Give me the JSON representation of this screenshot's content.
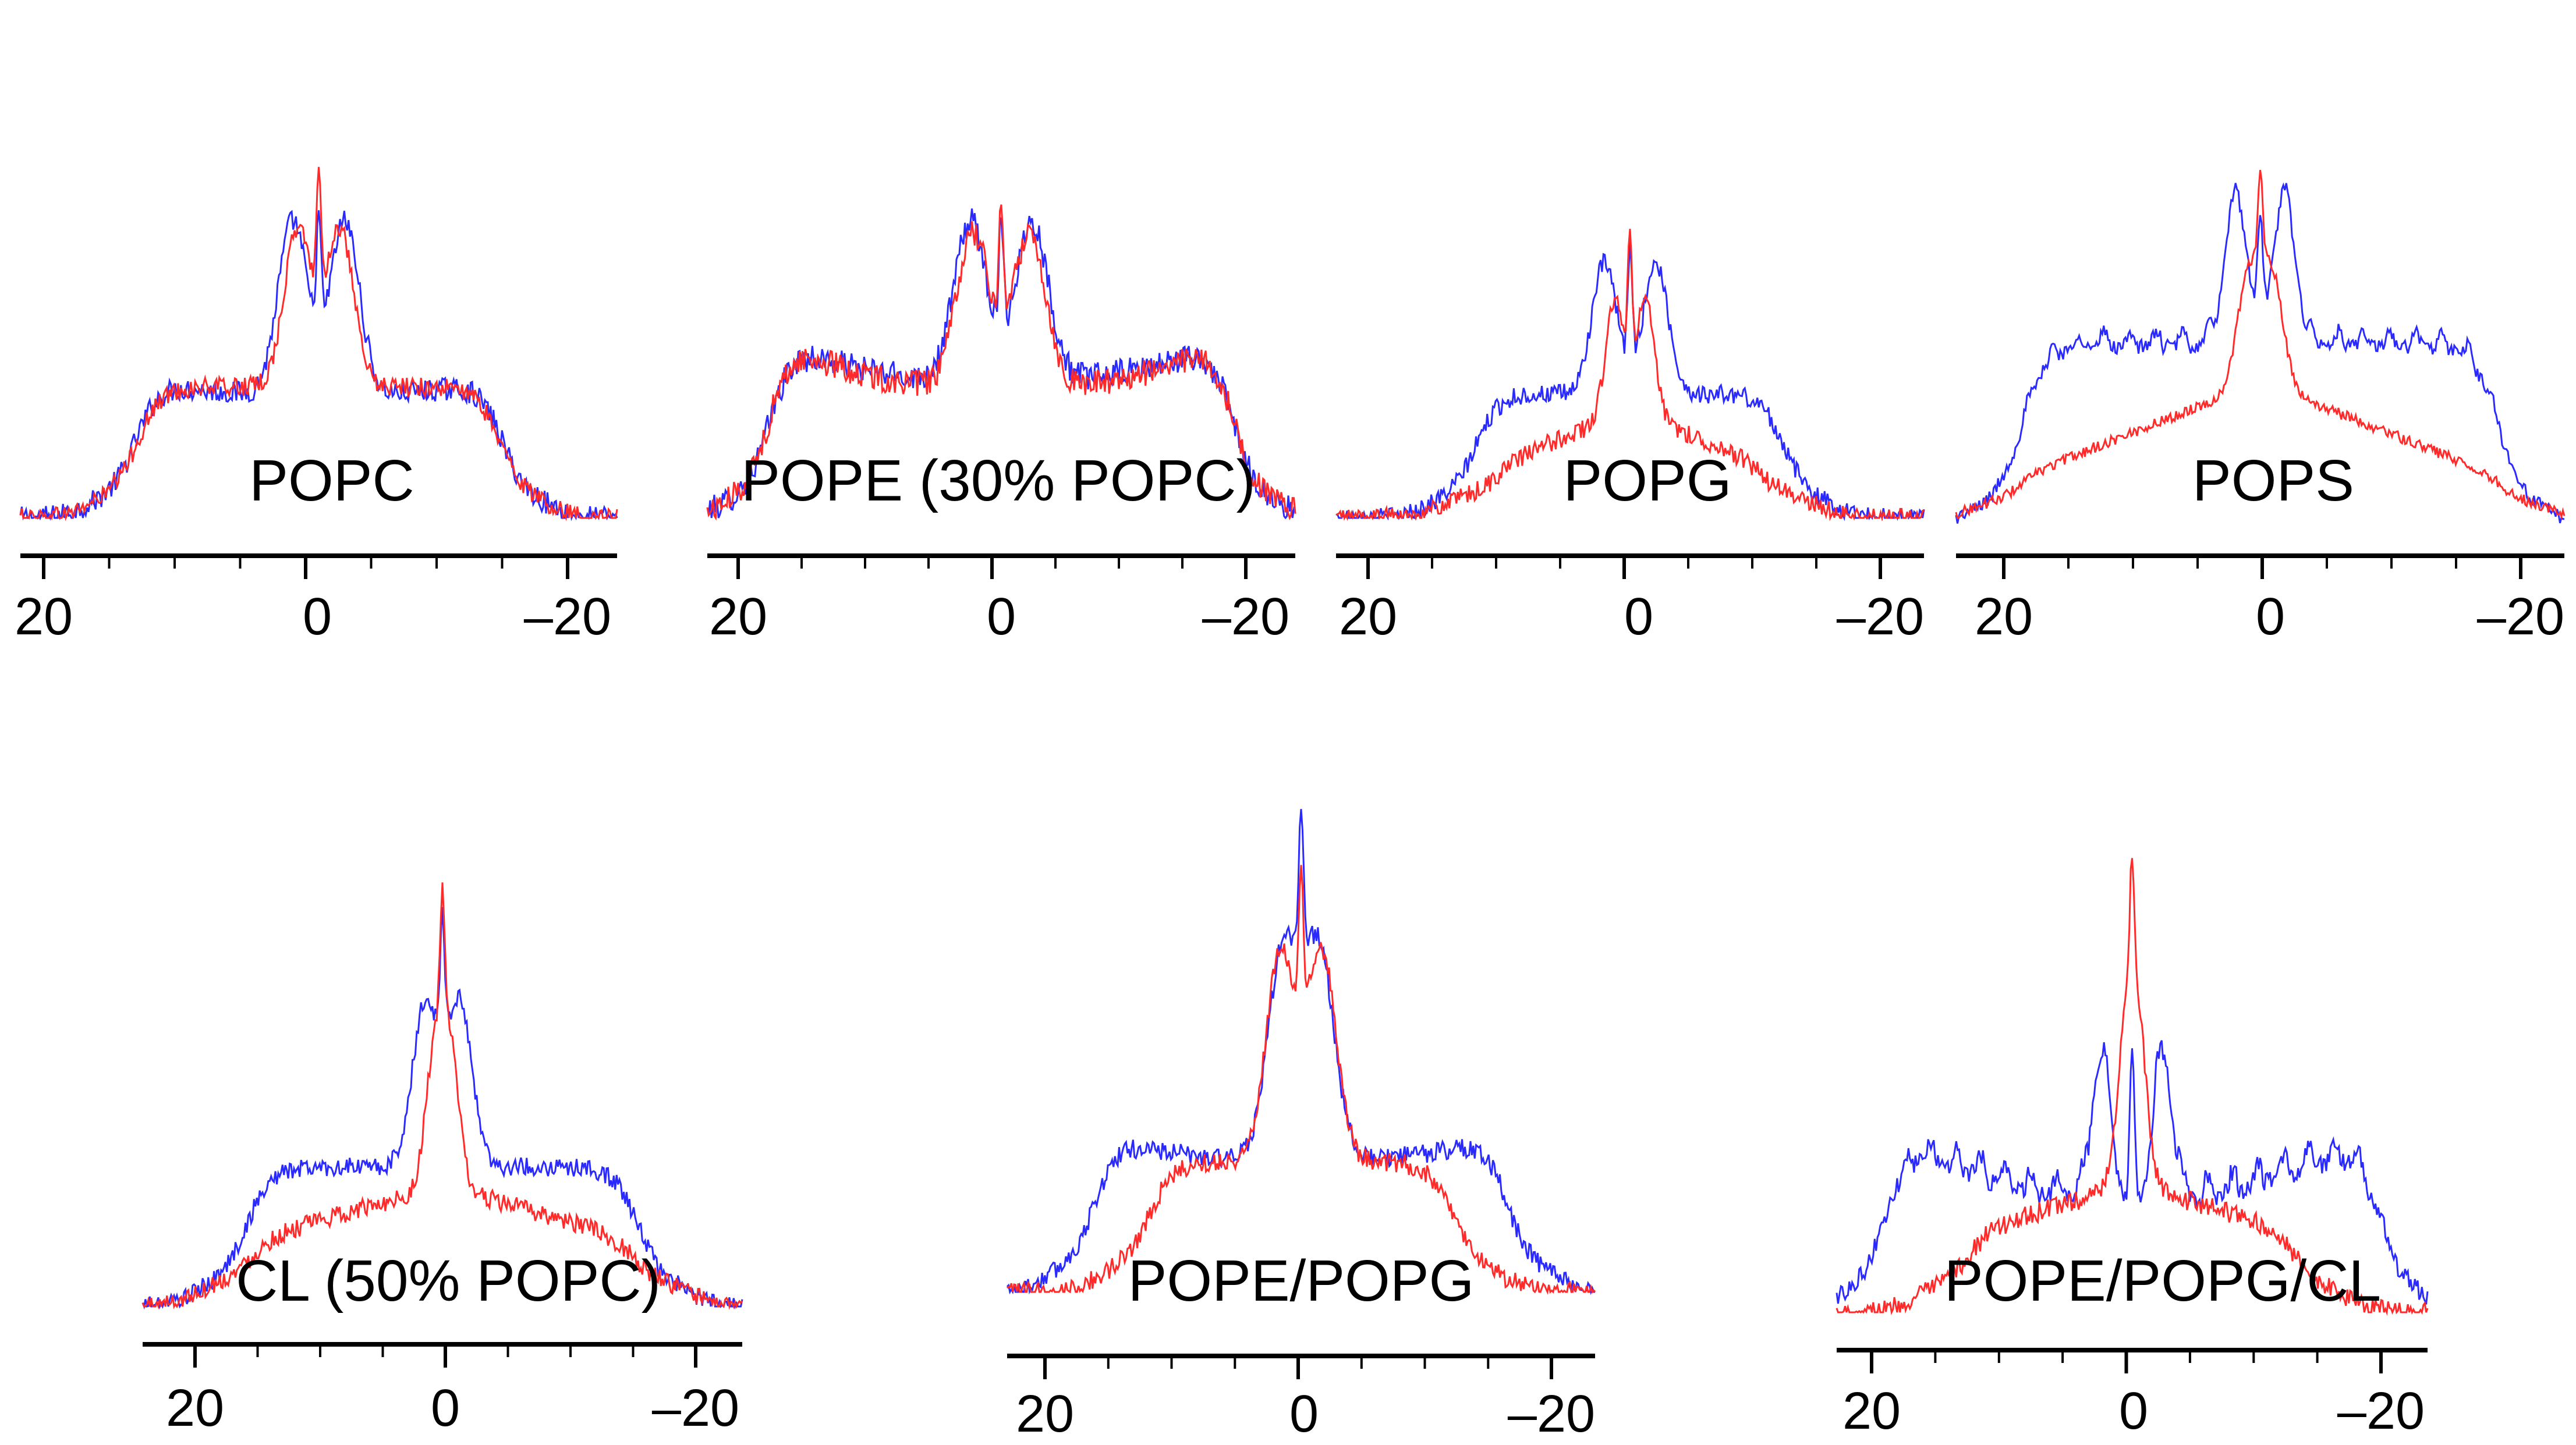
{
  "colors": {
    "series_blue": "#2a2aff",
    "series_red": "#ff2a2a",
    "axis": "#000000"
  },
  "chart_data": [
    {
      "type": "line",
      "title": "POPC",
      "xlim": [
        23,
        -23
      ],
      "ylim": [
        0,
        1
      ],
      "ticks": [
        20,
        0,
        -20
      ],
      "tick_labels": [
        "20",
        "0",
        "–20"
      ],
      "series": [
        {
          "name": "blue",
          "shape": "plateau",
          "edge": 14,
          "outer": 0.37,
          "inner": 0.32,
          "base": 0.0,
          "peak": 0.9,
          "peakw": 1.6,
          "noise": 0.03,
          "spike": 1.15,
          "split": 2.0
        },
        {
          "name": "red",
          "shape": "plateau",
          "edge": 14,
          "outer": 0.34,
          "inner": 0.34,
          "base": 0.0,
          "peak": 0.82,
          "peakw": 1.5,
          "noise": 0.025,
          "spike": 1.2,
          "split": 1.6
        }
      ]
    },
    {
      "type": "line",
      "title": "POPE (30% POPC)",
      "xlim": [
        23,
        -23
      ],
      "ylim": [
        0,
        1
      ],
      "ticks": [
        20,
        0,
        -20
      ],
      "tick_labels": [
        "20",
        "0",
        "–20"
      ],
      "series": [
        {
          "name": "blue",
          "shape": "plateau",
          "edge": 18,
          "outer": 0.48,
          "inner": 0.36,
          "base": 0.0,
          "peak": 0.82,
          "peakw": 1.8,
          "noise": 0.035,
          "spike": 1.2,
          "split": 2.4
        },
        {
          "name": "red",
          "shape": "plateau",
          "edge": 18,
          "outer": 0.49,
          "inner": 0.34,
          "base": 0.0,
          "peak": 0.8,
          "peakw": 1.8,
          "noise": 0.035,
          "spike": 1.25,
          "split": 2.2
        }
      ]
    },
    {
      "type": "line",
      "title": "POPG",
      "xlim": [
        23,
        -23
      ],
      "ylim": [
        0,
        1
      ],
      "ticks": [
        20,
        0,
        -20
      ],
      "tick_labels": [
        "20",
        "0",
        "–20"
      ],
      "series": [
        {
          "name": "blue",
          "shape": "plateau",
          "edge": 12,
          "outer": 0.33,
          "inner": 0.32,
          "base": 0.0,
          "peak": 0.68,
          "peakw": 1.4,
          "noise": 0.025,
          "spike": 1.2,
          "split": 2.0
        },
        {
          "name": "red",
          "shape": "ramp",
          "edge": 11,
          "outer": 0.13,
          "inner": 0.28,
          "base": 0.0,
          "peak": 0.6,
          "peakw": 1.0,
          "noise": 0.025,
          "spike": 1.25,
          "split": 1.2
        }
      ]
    },
    {
      "type": "line",
      "title": "POPS",
      "xlim": [
        23,
        -23
      ],
      "ylim": [
        0,
        1
      ],
      "ticks": [
        20,
        0,
        -20
      ],
      "tick_labels": [
        "20",
        "0",
        "–20"
      ],
      "series": [
        {
          "name": "blue",
          "shape": "comb",
          "edge": 18,
          "outer": 0.5,
          "inner": 0.5,
          "base": 0.0,
          "peak": 0.82,
          "peakw": 1.2,
          "noise": 0.02,
          "spike": 1.0,
          "split": 1.8
        },
        {
          "name": "red",
          "shape": "ramp",
          "edge": 19,
          "outer": 0.12,
          "inner": 0.4,
          "base": 0.0,
          "peak": 0.62,
          "peakw": 1.2,
          "noise": 0.015,
          "spike": 1.0,
          "split": 0.9
        }
      ]
    },
    {
      "type": "line",
      "title": "CL (50% POPC)",
      "xlim": [
        23,
        -23
      ],
      "ylim": [
        0,
        1
      ],
      "ticks": [
        20,
        0,
        -20
      ],
      "tick_labels": [
        "20",
        "0",
        "–20"
      ],
      "series": [
        {
          "name": "blue",
          "shape": "plateau",
          "edge": 15,
          "outer": 0.3,
          "inner": 0.3,
          "base": 0.0,
          "peak": 0.7,
          "peakw": 1.4,
          "noise": 0.02,
          "spike": 1.0,
          "split": 1.3
        },
        {
          "name": "red",
          "shape": "ramp",
          "edge": 15,
          "outer": 0.14,
          "inner": 0.26,
          "base": 0.0,
          "peak": 0.55,
          "peakw": 1.0,
          "noise": 0.02,
          "spike": 1.0,
          "split": 0.6
        }
      ]
    },
    {
      "type": "line",
      "title": "POPE/POPG",
      "xlim": [
        23,
        -23
      ],
      "ylim": [
        0,
        1
      ],
      "ticks": [
        20,
        0,
        -20
      ],
      "tick_labels": [
        "20",
        "0",
        "–20"
      ],
      "series": [
        {
          "name": "blue",
          "shape": "plateau",
          "edge": 16,
          "outer": 0.33,
          "inner": 0.27,
          "base": 0.0,
          "peak": 0.85,
          "peakw": 1.7,
          "noise": 0.02,
          "spike": 1.15,
          "split": 1.4
        },
        {
          "name": "red",
          "shape": "plateau",
          "edge": 12,
          "outer": 0.25,
          "inner": 0.27,
          "base": 0.0,
          "peak": 0.85,
          "peakw": 1.6,
          "noise": 0.02,
          "spike": 1.15,
          "split": 1.6
        }
      ]
    },
    {
      "type": "line",
      "title": "POPE/POPG/CL",
      "xlim": [
        23,
        -23
      ],
      "ylim": [
        0,
        1
      ],
      "ticks": [
        20,
        0,
        -20
      ],
      "tick_labels": [
        "20",
        "0",
        "–20"
      ],
      "series": [
        {
          "name": "blue",
          "shape": "comb",
          "edge": 19,
          "outer": 0.36,
          "inner": 0.22,
          "base": 0.0,
          "peak": 0.6,
          "peakw": 1.0,
          "noise": 0.02,
          "spike": 1.0,
          "split": 2.4
        },
        {
          "name": "red",
          "shape": "ramp",
          "edge": 13,
          "outer": 0.16,
          "inner": 0.26,
          "base": 0.0,
          "peak": 0.55,
          "peakw": 1.0,
          "noise": 0.02,
          "spike": 1.0,
          "split": 0.5
        }
      ]
    }
  ]
}
